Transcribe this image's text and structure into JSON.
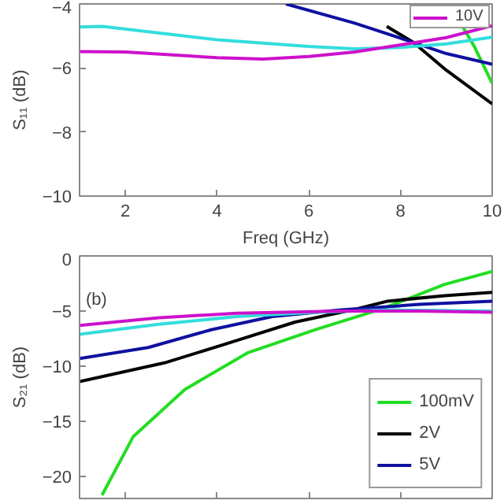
{
  "chart_data": [
    {
      "type": "line",
      "xlabel": "Freq (GHz)",
      "ylabel": "S₁₁ (dB)",
      "xlim": [
        1,
        10
      ],
      "ylim": [
        -10,
        -4
      ],
      "xticks": [
        2,
        4,
        6,
        8,
        10
      ],
      "yticks": [
        -10,
        -8,
        -6,
        -4
      ],
      "grid": false,
      "legend": "top right",
      "line_style": "solid",
      "series": [
        {
          "color": "#22dd22",
          "x": [
            9.35,
            9.6,
            10
          ],
          "values": [
            -4.7,
            -5.3,
            -6.48
          ]
        },
        {
          "color": "#000000",
          "x": [
            7.7,
            8.28,
            9,
            10
          ],
          "values": [
            -4.7,
            -5.2,
            -6.07,
            -7.12
          ]
        },
        {
          "color": "#1010a0",
          "x": [
            5.5,
            7,
            8.28,
            9,
            10
          ],
          "values": [
            -4.0,
            -4.6,
            -5.2,
            -5.55,
            -5.88
          ]
        },
        {
          "color": "#33dddd",
          "x": [
            1,
            1.5,
            4,
            6,
            7,
            8,
            9,
            10
          ],
          "values": [
            -4.72,
            -4.7,
            -5.12,
            -5.33,
            -5.4,
            -5.36,
            -5.25,
            -5.04
          ]
        },
        {
          "name": "10V",
          "color": "#cc11cc",
          "x": [
            1,
            2,
            4,
            5,
            6,
            7,
            8,
            9,
            10
          ],
          "values": [
            -5.49,
            -5.5,
            -5.68,
            -5.72,
            -5.64,
            -5.5,
            -5.28,
            -5.05,
            -4.68
          ]
        }
      ]
    },
    {
      "type": "line",
      "ylabel": "S₂₁ (dB)",
      "xlim": [
        1,
        10
      ],
      "ylim": [
        -22,
        0
      ],
      "xticks": [
        2,
        4,
        6,
        8,
        10
      ],
      "yticks": [
        -20,
        -15,
        -10,
        -5,
        0
      ],
      "tick_labels": "y",
      "grid": false,
      "legend": "bottom right",
      "line_style": "solid",
      "annotations": [
        "(b)"
      ],
      "series": [
        {
          "name": "100mV",
          "color": "#22dd22",
          "x": [
            1.49,
            2.17,
            3.3,
            4.66,
            6.13,
            7.6,
            8.95,
            10
          ],
          "values": [
            -21.7,
            -16.4,
            -12.1,
            -8.8,
            -6.7,
            -4.8,
            -2.6,
            -1.4
          ]
        },
        {
          "name": "2V",
          "color": "#000000",
          "x": [
            1,
            2.85,
            4.1,
            5.7,
            7.05,
            7.72,
            8.96,
            10
          ],
          "values": [
            -11.4,
            -9.7,
            -8.1,
            -6.0,
            -4.8,
            -4.1,
            -3.6,
            -3.3
          ]
        },
        {
          "name": "5V",
          "color": "#1010a0",
          "x": [
            1,
            2.5,
            3.87,
            5.2,
            6.7,
            8.4,
            10
          ],
          "values": [
            -9.3,
            -8.3,
            -6.7,
            -5.5,
            -4.9,
            -4.4,
            -4.1
          ]
        },
        {
          "color": "#33dddd",
          "x": [
            1,
            2.73,
            4.43,
            6.13,
            7.83,
            10
          ],
          "values": [
            -7.1,
            -6.2,
            -5.5,
            -5.1,
            -4.9,
            -5.0
          ]
        },
        {
          "color": "#cc11cc",
          "x": [
            1,
            2.73,
            4.43,
            6.7,
            8.4,
            10
          ],
          "values": [
            -6.3,
            -5.6,
            -5.2,
            -5.0,
            -5.0,
            -5.1
          ]
        }
      ]
    }
  ]
}
